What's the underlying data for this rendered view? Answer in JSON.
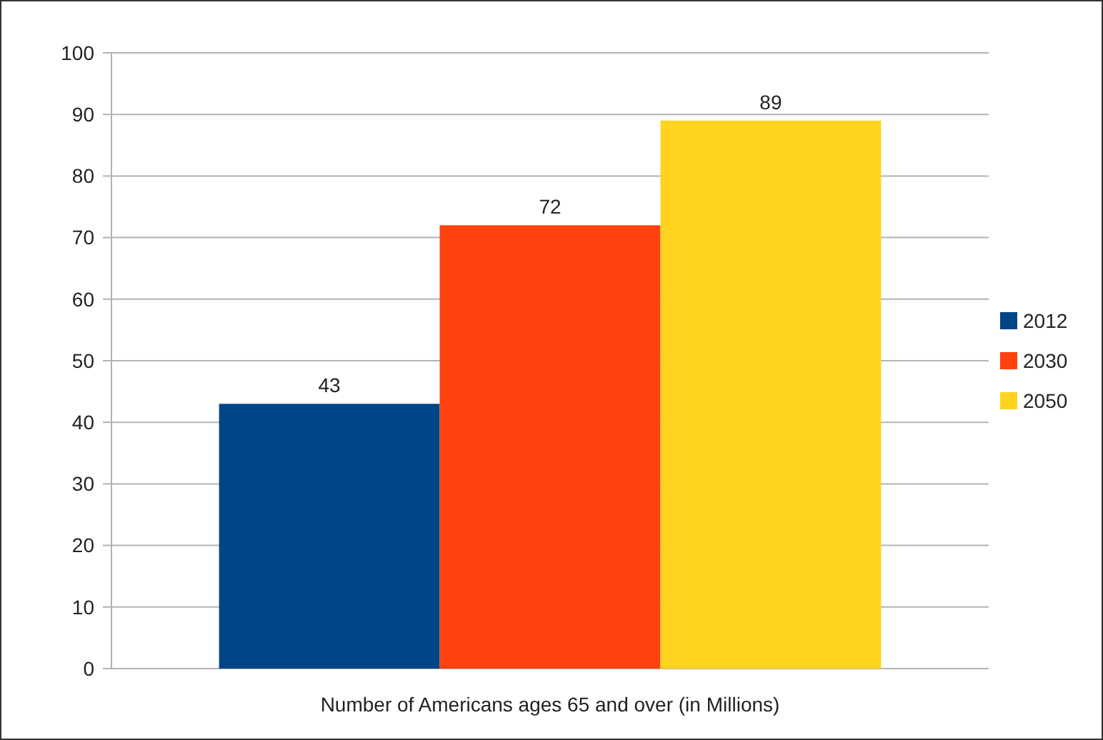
{
  "chart_data": {
    "type": "bar",
    "xlabel": "Number of Americans ages 65 and over (in Millions)",
    "categories": [
      null
    ],
    "series": [
      {
        "name": "2012",
        "color": "#004586",
        "values": [
          43
        ]
      },
      {
        "name": "2030",
        "color": "#ff420e",
        "values": [
          72
        ]
      },
      {
        "name": "2050",
        "color": "#ffd320",
        "values": [
          89
        ]
      }
    ],
    "ylim": [
      0,
      100
    ],
    "yticks": [
      0,
      10,
      20,
      30,
      40,
      50,
      60,
      70,
      80,
      90,
      100
    ],
    "grid": "y",
    "legend": "right",
    "data_labels": true
  }
}
